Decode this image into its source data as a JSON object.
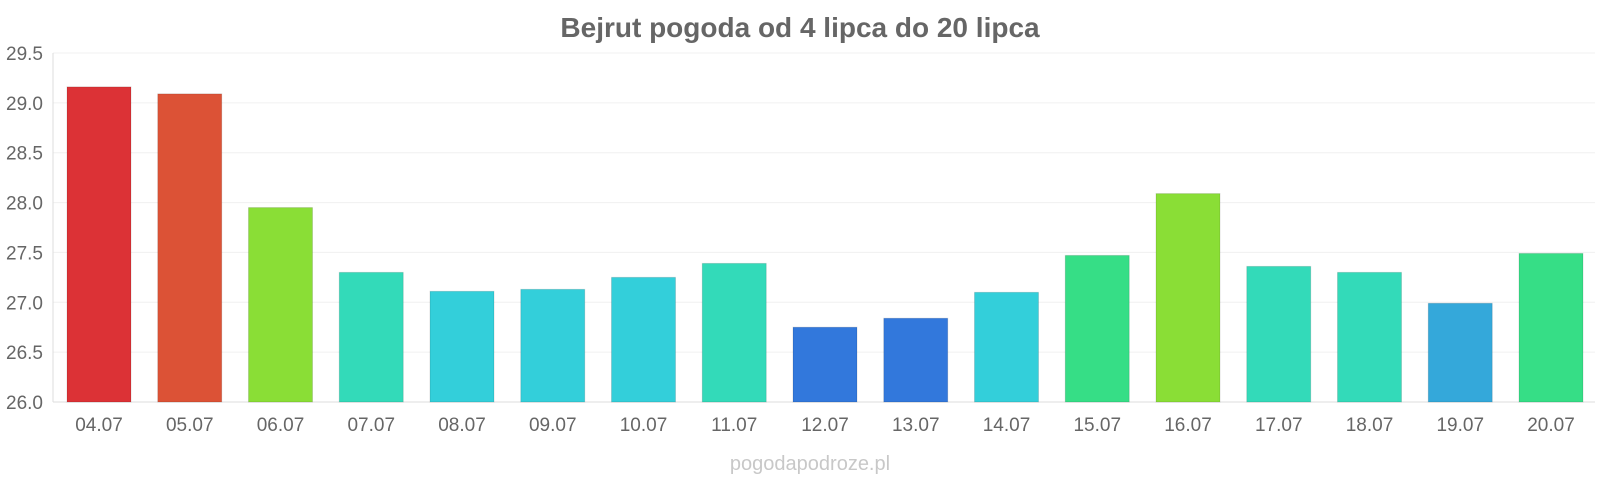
{
  "chart_data": {
    "type": "bar",
    "title": "Bejrut pogoda od 4 lipca do 20 lipca",
    "xlabel": "",
    "ylabel": "",
    "ylim": [
      26.0,
      29.5
    ],
    "y_ticks": [
      "26.0",
      "26.5",
      "27.0",
      "27.5",
      "28.0",
      "28.5",
      "29.0",
      "29.5"
    ],
    "y_tick_values": [
      26.0,
      26.5,
      27.0,
      27.5,
      28.0,
      28.5,
      29.0,
      29.5
    ],
    "grid": true,
    "legend": "none",
    "categories": [
      "04.07",
      "05.07",
      "06.07",
      "07.07",
      "08.07",
      "09.07",
      "10.07",
      "11.07",
      "12.07",
      "13.07",
      "14.07",
      "15.07",
      "16.07",
      "17.07",
      "18.07",
      "19.07",
      "20.07"
    ],
    "values": [
      29.16,
      29.09,
      27.95,
      27.3,
      27.11,
      27.13,
      27.25,
      27.39,
      26.75,
      26.84,
      27.1,
      27.47,
      28.09,
      27.36,
      27.3,
      26.99,
      27.49
    ],
    "colors": [
      "#dc3236",
      "#dc5236",
      "#8ade36",
      "#33dab9",
      "#33cfda",
      "#33cfda",
      "#33cfda",
      "#33dab9",
      "#3278dc",
      "#3278dc",
      "#33cfda",
      "#36de86",
      "#8ade36",
      "#33dab9",
      "#33dab9",
      "#34a8da",
      "#36de86"
    ]
  },
  "watermark": "pogodapodroze.pl"
}
